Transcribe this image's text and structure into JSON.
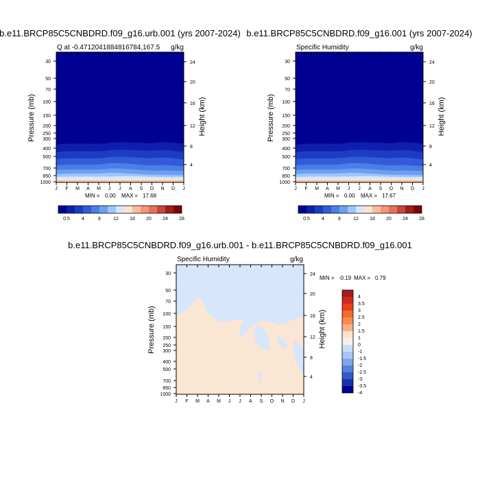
{
  "chart_data": [
    {
      "type": "heatmap",
      "title": "b.e11.BRCP85C5CNBDRD.f09_g16.urb.001 (yrs 2007-2024)",
      "subtitle_left": "Q at -0.4712041884816784,167.5",
      "subtitle_right": "g/kg",
      "ylabel": "Pressure (mb)",
      "ylabel_right": "Height (km)",
      "pressure_ticks": [
        "30",
        "50",
        "70",
        "100",
        "150",
        "200",
        "250",
        "300",
        "400",
        "500",
        "700",
        "850",
        "1000"
      ],
      "height_ticks": [
        "24",
        "20",
        "16",
        "12",
        "8",
        "4"
      ],
      "month_ticks": [
        "J",
        "F",
        "M",
        "A",
        "M",
        "J",
        "J",
        "A",
        "S",
        "O",
        "N",
        "D",
        "J"
      ],
      "stats": {
        "min_label": "MIN =",
        "min": "0.00",
        "max_label": "MAX =",
        "max": "17.68"
      },
      "colorbar_labels": [
        "0.5",
        "4",
        "8",
        "12",
        "16",
        "20",
        "24",
        "28"
      ],
      "colors": [
        "#000092",
        "#0c1fad",
        "#1e3cc3",
        "#305cd9",
        "#4a7fe6",
        "#6b9ff2",
        "#9fc5ff",
        "#d4e7ff",
        "#fde3cc",
        "#fbbd9b",
        "#f5957a",
        "#e8705c",
        "#cc4437",
        "#a51b17",
        "#7a0303"
      ]
    },
    {
      "type": "heatmap",
      "title": "b.e11.BRCP85C5CNBDRD.f09_g16.001 (yrs 2007-2024)",
      "subtitle_left": "Specific Humidity",
      "subtitle_right": "g/kg",
      "ylabel": "Pressure (mb)",
      "ylabel_right": "Height (km)",
      "pressure_ticks": [
        "30",
        "50",
        "70",
        "100",
        "150",
        "200",
        "250",
        "300",
        "400",
        "500",
        "700",
        "850",
        "1000"
      ],
      "height_ticks": [
        "24",
        "20",
        "16",
        "12",
        "8",
        "4"
      ],
      "month_ticks": [
        "J",
        "F",
        "M",
        "A",
        "M",
        "J",
        "J",
        "A",
        "S",
        "O",
        "N",
        "D",
        "J"
      ],
      "stats": {
        "min_label": "MIN =",
        "min": "0.00",
        "max_label": "MAX =",
        "max": "17.67"
      },
      "colorbar_labels": [
        "0.5",
        "4",
        "8",
        "12",
        "16",
        "20",
        "24",
        "28"
      ],
      "colors": [
        "#000092",
        "#0c1fad",
        "#1e3cc3",
        "#305cd9",
        "#4a7fe6",
        "#6b9ff2",
        "#9fc5ff",
        "#d4e7ff",
        "#fde3cc",
        "#fbbd9b",
        "#f5957a",
        "#e8705c",
        "#cc4437",
        "#a51b17",
        "#7a0303"
      ]
    },
    {
      "type": "heatmap",
      "title": "b.e11.BRCP85C5CNBDRD.f09_g16.urb.001 - b.e11.BRCP85C5CNBDRD.f09_g16.001",
      "subtitle_left": "Specific Humidity",
      "subtitle_right": "g/kg",
      "ylabel": "Pressure (mb)",
      "ylabel_right": "Height (km)",
      "pressure_ticks": [
        "30",
        "50",
        "70",
        "100",
        "150",
        "200",
        "250",
        "300",
        "400",
        "500",
        "700",
        "850",
        "1000"
      ],
      "height_ticks": [
        "24",
        "20",
        "16",
        "12",
        "8",
        "4"
      ],
      "month_ticks": [
        "J",
        "F",
        "M",
        "A",
        "M",
        "J",
        "J",
        "A",
        "S",
        "O",
        "N",
        "D",
        "J"
      ],
      "stats": {
        "min_label": "MIN =",
        "min": "-0.19",
        "max_label": "MAX =",
        "max": "0.79"
      },
      "colorbar_labels": [
        "4",
        "3.5",
        "3",
        "2.5",
        "2",
        "1.5",
        "1",
        "0",
        "-1",
        "-1.5",
        "-2",
        "-2.5",
        "-3",
        "-3.5",
        "-4"
      ],
      "colors": [
        "#a51b17",
        "#cc2a1f",
        "#e8401c",
        "#f36a2a",
        "#f88d52",
        "#fbb08a",
        "#fde3cc",
        "#f6f0ea",
        "#c9dcf7",
        "#a8c6f3",
        "#7fa6eb",
        "#5483de",
        "#2e5cc9",
        "#1634ad",
        "#000092"
      ]
    }
  ]
}
